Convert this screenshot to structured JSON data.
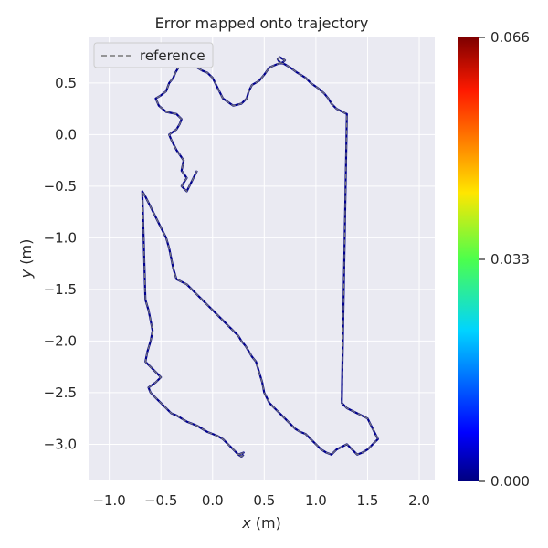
{
  "chart_data": {
    "type": "line",
    "title": "Error mapped onto trajectory",
    "xlabel_var": "x",
    "xlabel_unit": " (m)",
    "ylabel_var": "y",
    "ylabel_unit": " (m)",
    "xlim": [
      -1.2,
      2.15
    ],
    "ylim": [
      -3.35,
      0.95
    ],
    "xticks": [
      -1.0,
      -0.5,
      0.0,
      0.5,
      1.0,
      1.5,
      2.0
    ],
    "xtick_labels": [
      "−1.0",
      "−0.5",
      "0.0",
      "0.5",
      "1.0",
      "1.5",
      "2.0"
    ],
    "yticks": [
      0.5,
      0.0,
      -0.5,
      -1.0,
      -1.5,
      -2.0,
      -2.5,
      -3.0
    ],
    "ytick_labels": [
      "0.5",
      "0.0",
      "−0.5",
      "−1.0",
      "−1.5",
      "−2.0",
      "−2.5",
      "−3.0"
    ],
    "grid": true,
    "legend": {
      "position": "top-left",
      "entries": [
        "reference"
      ]
    },
    "colorbar": {
      "min": 0.0,
      "max": 0.066,
      "ticks": [
        0.066,
        0.033,
        0.0
      ],
      "tick_labels": [
        "0.066",
        "0.033",
        "0.000"
      ],
      "colormap": "jet"
    },
    "series": [
      {
        "name": "reference",
        "style": "dashed",
        "color": "#777777",
        "x": [
          -0.15,
          -0.2,
          -0.25,
          -0.3,
          -0.25,
          -0.3,
          -0.28,
          -0.35,
          -0.4,
          -0.42,
          -0.35,
          -0.32,
          -0.3,
          -0.35,
          -0.45,
          -0.52,
          -0.55,
          -0.5,
          -0.45,
          -0.42,
          -0.38,
          -0.36,
          -0.33,
          -0.28,
          -0.27,
          -0.25,
          -0.22,
          -0.2,
          -0.18,
          -0.16,
          -0.15,
          -0.1,
          -0.05,
          0.0,
          0.05,
          0.1,
          0.2,
          0.28,
          0.33,
          0.35,
          0.38,
          0.45,
          0.5,
          0.55,
          0.62,
          0.68,
          0.7,
          0.65,
          0.63,
          0.65,
          0.7,
          0.75,
          0.82,
          0.9,
          0.95,
          1.02,
          1.08,
          1.12,
          1.15,
          1.2,
          1.3,
          1.25,
          1.3,
          1.4,
          1.5,
          1.55,
          1.6,
          1.55,
          1.5,
          1.45,
          1.4,
          1.35,
          1.3,
          1.2,
          1.15,
          1.1,
          1.05,
          1.0,
          0.95,
          0.9,
          0.85,
          0.8,
          0.75,
          0.7,
          0.65,
          0.6,
          0.55,
          0.5,
          0.48,
          0.45,
          0.42,
          0.38,
          0.35,
          0.32,
          0.28,
          0.25,
          0.2,
          0.15,
          0.1,
          0.05,
          0.0,
          -0.05,
          -0.1,
          -0.15,
          -0.2,
          -0.25,
          -0.35,
          -0.38,
          -0.4,
          -0.42,
          -0.45,
          -0.5,
          -0.55,
          -0.6,
          -0.65,
          -0.68,
          -0.65,
          -0.62,
          -0.6,
          -0.58,
          -0.6,
          -0.63,
          -0.65,
          -0.6,
          -0.55,
          -0.5,
          -0.55,
          -0.62,
          -0.6,
          -0.55,
          -0.5,
          -0.45,
          -0.4,
          -0.35,
          -0.3,
          -0.25,
          -0.2,
          -0.15,
          -0.1,
          -0.05,
          0.0,
          0.05,
          0.1,
          0.15,
          0.2,
          0.25,
          0.3,
          0.25,
          0.28,
          0.3
        ],
        "y": [
          -0.35,
          -0.45,
          -0.55,
          -0.5,
          -0.42,
          -0.35,
          -0.25,
          -0.15,
          -0.05,
          0.0,
          0.05,
          0.1,
          0.15,
          0.2,
          0.22,
          0.28,
          0.35,
          0.38,
          0.42,
          0.5,
          0.55,
          0.6,
          0.65,
          0.68,
          0.7,
          0.72,
          0.73,
          0.72,
          0.7,
          0.68,
          0.65,
          0.62,
          0.6,
          0.55,
          0.45,
          0.35,
          0.28,
          0.3,
          0.35,
          0.42,
          0.48,
          0.52,
          0.58,
          0.65,
          0.68,
          0.7,
          0.72,
          0.75,
          0.73,
          0.7,
          0.68,
          0.65,
          0.6,
          0.55,
          0.5,
          0.45,
          0.4,
          0.35,
          0.3,
          0.25,
          0.2,
          -2.6,
          -2.65,
          -2.7,
          -2.75,
          -2.85,
          -2.95,
          -3.0,
          -3.05,
          -3.08,
          -3.1,
          -3.05,
          -3.0,
          -3.05,
          -3.1,
          -3.08,
          -3.05,
          -3.0,
          -2.95,
          -2.9,
          -2.88,
          -2.85,
          -2.8,
          -2.75,
          -2.7,
          -2.65,
          -2.6,
          -2.5,
          -2.4,
          -2.3,
          -2.2,
          -2.15,
          -2.1,
          -2.05,
          -2.0,
          -1.95,
          -1.9,
          -1.85,
          -1.8,
          -1.75,
          -1.7,
          -1.65,
          -1.6,
          -1.55,
          -1.5,
          -1.45,
          -1.4,
          -1.3,
          -1.2,
          -1.1,
          -1.0,
          -0.9,
          -0.8,
          -0.7,
          -0.6,
          -0.55,
          -1.6,
          -1.7,
          -1.8,
          -1.9,
          -2.0,
          -2.1,
          -2.2,
          -2.25,
          -2.3,
          -2.35,
          -2.4,
          -2.45,
          -2.5,
          -2.55,
          -2.6,
          -2.65,
          -2.7,
          -2.72,
          -2.75,
          -2.78,
          -2.8,
          -2.82,
          -2.85,
          -2.88,
          -2.9,
          -2.92,
          -2.95,
          -3.0,
          -3.05,
          -3.1,
          -3.08,
          -3.1,
          -3.12,
          -3.1
        ]
      }
    ]
  }
}
